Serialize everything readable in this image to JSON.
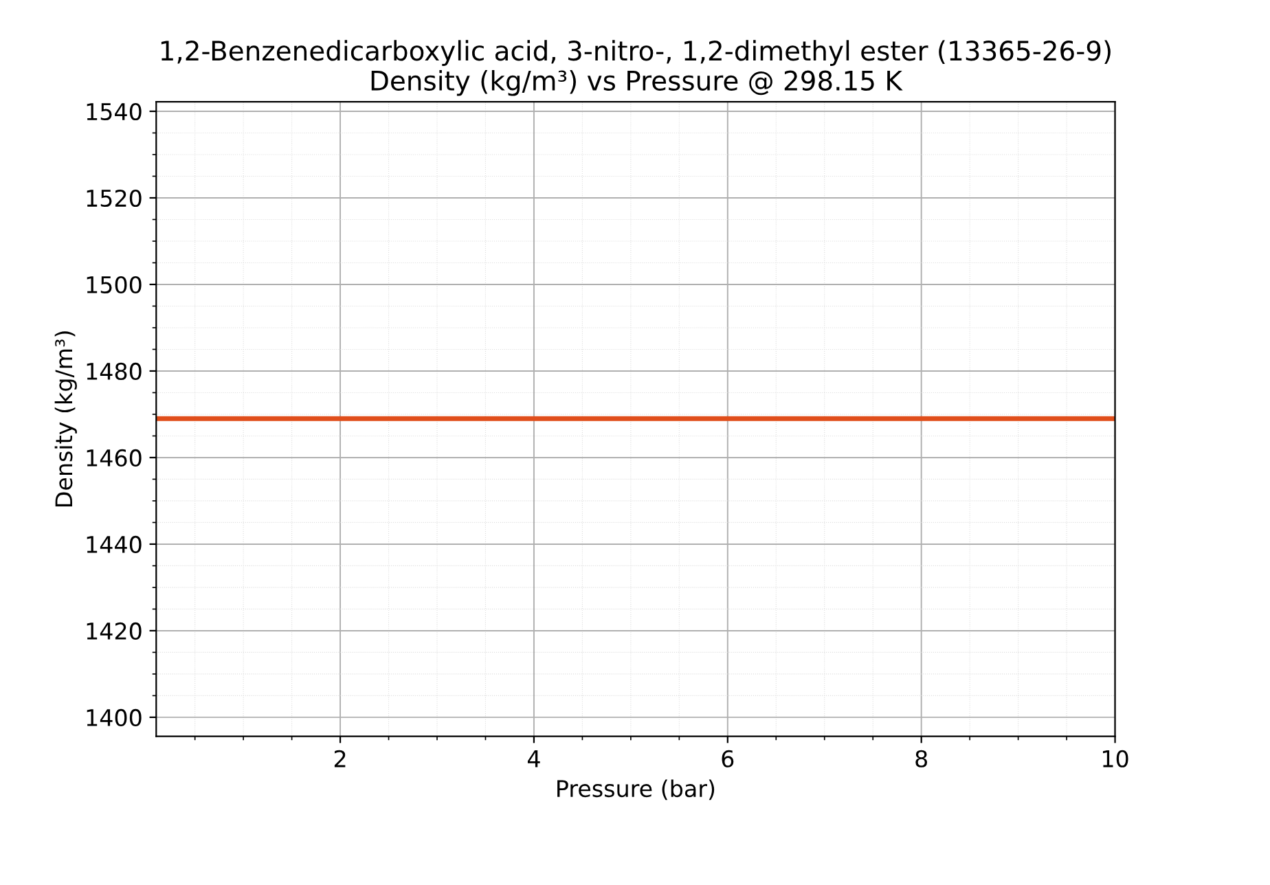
{
  "chart_data": {
    "type": "line",
    "title": "1,2-Benzenedicarboxylic acid, 3-nitro-, 1,2-dimethyl ester (13365-26-9)\nDensity (kg/m³) vs Pressure @ 298.15 K",
    "xlabel": "Pressure (bar)",
    "ylabel": "Density (kg/m³)",
    "series": [
      {
        "color": "#e04e1b",
        "x": [
          0.1,
          10
        ],
        "values": [
          1469,
          1469
        ]
      }
    ],
    "xlim": [
      0.1,
      10
    ],
    "ylim": [
      1395.6,
      1542.2
    ],
    "xticks": [
      2,
      4,
      6,
      8,
      10
    ],
    "yticks": [
      1400,
      1420,
      1440,
      1460,
      1480,
      1500,
      1520,
      1540
    ],
    "grid": true,
    "marker": "none",
    "line_style": "solid"
  }
}
